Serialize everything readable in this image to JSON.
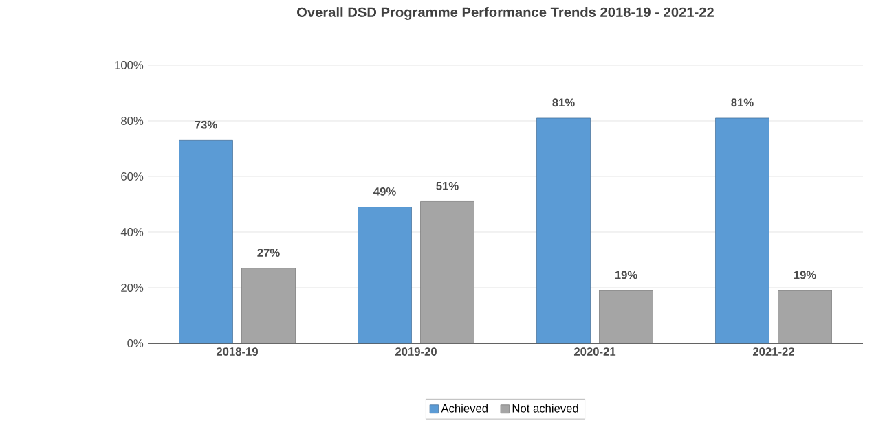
{
  "chart_data": {
    "type": "bar",
    "title": "Overall DSD Programme  Performance Trends  2018-19 - 2021-22",
    "categories": [
      "2018-19",
      "2019-20",
      "2020-21",
      "2021-22"
    ],
    "series": [
      {
        "name": "Achieved",
        "color": "#5b9bd5",
        "values": [
          73,
          49,
          81,
          81
        ],
        "value_labels": [
          "73%",
          "49%",
          "81%",
          "81%"
        ]
      },
      {
        "name": "Not achieved",
        "color": "#a5a5a5",
        "values": [
          27,
          51,
          19,
          19
        ],
        "value_labels": [
          "27%",
          "51%",
          "19%",
          "19%"
        ]
      }
    ],
    "ylim": [
      0,
      100
    ],
    "yticks": [
      {
        "value": 0,
        "label": "0%"
      },
      {
        "value": 20,
        "label": "20%"
      },
      {
        "value": 40,
        "label": "40%"
      },
      {
        "value": 60,
        "label": "60%"
      },
      {
        "value": 80,
        "label": "80%"
      },
      {
        "value": 100,
        "label": "100%"
      }
    ],
    "grid": "y",
    "legend": "bottom"
  }
}
